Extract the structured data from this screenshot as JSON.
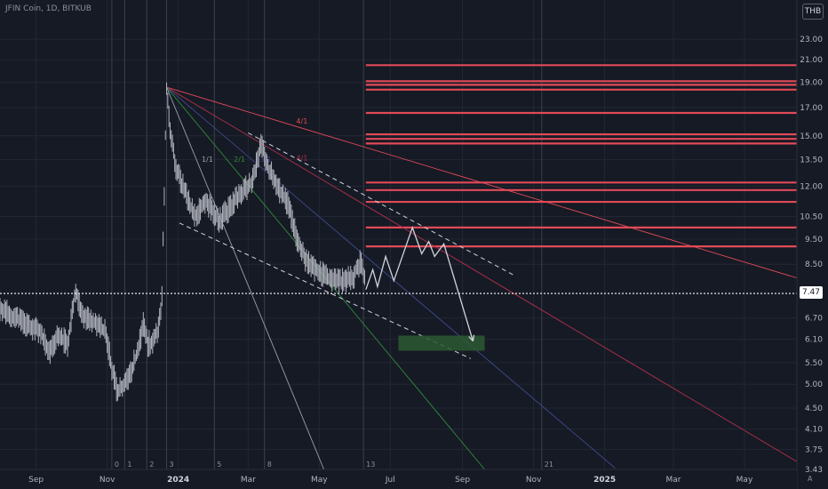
{
  "header": {
    "symbol_line": "JFIN Coin, 1D, BITKUB",
    "currency": "THB"
  },
  "price_axis": {
    "labels": [
      "23.00",
      "21.00",
      "19.00",
      "17.00",
      "15.00",
      "13.50",
      "12.00",
      "10.50",
      "9.50",
      "8.50",
      "6.70",
      "6.10",
      "5.50",
      "5.00",
      "4.50",
      "4.10",
      "3.75",
      "3.43"
    ],
    "last_price": "7.47",
    "scale": "log",
    "auto_label": "A"
  },
  "time_axis": {
    "labels": [
      "Sep",
      "Nov",
      "2024",
      "Mar",
      "May",
      "Jul",
      "Sep",
      "Nov",
      "2025",
      "Mar",
      "May"
    ],
    "bold": [
      "2024",
      "2025"
    ]
  },
  "chart_data": {
    "type": "line",
    "symbol": "JFIN Coin",
    "interval": "1D",
    "exchange": "BITKUB",
    "currency": "THB",
    "x_axis": "date",
    "xlim": [
      "2023-08-01",
      "2025-06-15"
    ],
    "ylim": [
      3.43,
      24.5
    ],
    "y_scale": "log",
    "grid": true,
    "series": [
      {
        "style": "candles",
        "color": "#b2b5be",
        "points": [
          {
            "x": "2023-08-01",
            "y": 7.0
          },
          {
            "x": "2023-08-10",
            "y": 6.8
          },
          {
            "x": "2023-08-20",
            "y": 6.6
          },
          {
            "x": "2023-08-30",
            "y": 6.4
          },
          {
            "x": "2023-09-05",
            "y": 6.3
          },
          {
            "x": "2023-09-12",
            "y": 5.7
          },
          {
            "x": "2023-09-20",
            "y": 6.2
          },
          {
            "x": "2023-09-28",
            "y": 6.0
          },
          {
            "x": "2023-10-02",
            "y": 6.9
          },
          {
            "x": "2023-10-05",
            "y": 7.6
          },
          {
            "x": "2023-10-10",
            "y": 6.8
          },
          {
            "x": "2023-10-20",
            "y": 6.6
          },
          {
            "x": "2023-10-30",
            "y": 6.3
          },
          {
            "x": "2023-11-05",
            "y": 5.4
          },
          {
            "x": "2023-11-10",
            "y": 4.8
          },
          {
            "x": "2023-11-15",
            "y": 5.0
          },
          {
            "x": "2023-11-22",
            "y": 5.3
          },
          {
            "x": "2023-11-28",
            "y": 5.9
          },
          {
            "x": "2023-12-02",
            "y": 6.5
          },
          {
            "x": "2023-12-06",
            "y": 6.0
          },
          {
            "x": "2023-12-10",
            "y": 6.0
          },
          {
            "x": "2023-12-15",
            "y": 6.4
          },
          {
            "x": "2023-12-18",
            "y": 7.3
          },
          {
            "x": "2023-12-20",
            "y": 11.5
          },
          {
            "x": "2023-12-22",
            "y": 18.6
          },
          {
            "x": "2023-12-25",
            "y": 15.5
          },
          {
            "x": "2023-12-30",
            "y": 13.0
          },
          {
            "x": "2024-01-08",
            "y": 11.5
          },
          {
            "x": "2024-01-15",
            "y": 10.5
          },
          {
            "x": "2024-01-25",
            "y": 11.2
          },
          {
            "x": "2024-02-05",
            "y": 10.3
          },
          {
            "x": "2024-02-15",
            "y": 11.0
          },
          {
            "x": "2024-02-25",
            "y": 11.7
          },
          {
            "x": "2024-03-05",
            "y": 12.3
          },
          {
            "x": "2024-03-12",
            "y": 14.5
          },
          {
            "x": "2024-03-18",
            "y": 13.0
          },
          {
            "x": "2024-03-28",
            "y": 11.8
          },
          {
            "x": "2024-04-05",
            "y": 11.0
          },
          {
            "x": "2024-04-12",
            "y": 9.5
          },
          {
            "x": "2024-04-20",
            "y": 8.6
          },
          {
            "x": "2024-04-28",
            "y": 8.3
          },
          {
            "x": "2024-05-08",
            "y": 8.0
          },
          {
            "x": "2024-05-20",
            "y": 7.9
          },
          {
            "x": "2024-05-30",
            "y": 8.0
          },
          {
            "x": "2024-06-05",
            "y": 8.6
          },
          {
            "x": "2024-06-10",
            "y": 7.8
          }
        ]
      },
      {
        "style": "projection",
        "color": "#d1d4dc",
        "points": [
          {
            "x": "2024-06-10",
            "y": 7.6
          },
          {
            "x": "2024-06-16",
            "y": 8.3
          },
          {
            "x": "2024-06-20",
            "y": 7.7
          },
          {
            "x": "2024-06-27",
            "y": 8.8
          },
          {
            "x": "2024-07-04",
            "y": 7.9
          },
          {
            "x": "2024-07-20",
            "y": 10.0
          },
          {
            "x": "2024-07-28",
            "y": 8.9
          },
          {
            "x": "2024-08-03",
            "y": 9.4
          },
          {
            "x": "2024-08-08",
            "y": 8.8
          },
          {
            "x": "2024-08-16",
            "y": 9.3
          },
          {
            "x": "2024-09-10",
            "y": 6.05
          }
        ]
      }
    ],
    "horizontal_levels": {
      "color": "#e04a57",
      "start": "2024-06-10",
      "values": [
        20.5,
        19.1,
        18.8,
        18.4,
        16.6,
        15.1,
        14.8,
        14.5,
        12.2,
        11.8,
        11.2,
        10.0,
        9.2
      ]
    },
    "target_zone": {
      "color": "#2b5a33",
      "x": [
        "2024-07-08",
        "2024-09-20"
      ],
      "y": [
        5.8,
        6.2
      ]
    },
    "gann_fan": {
      "origin": {
        "x": "2023-12-22",
        "y": 18.6
      },
      "rays": [
        {
          "label": "4/1",
          "color": "#e04a57",
          "end": {
            "x": "2025-06-15",
            "y": 8.0
          }
        },
        {
          "label": "4/1",
          "color": "#b0304a",
          "end": {
            "x": "2025-06-15",
            "y": 3.55
          }
        },
        {
          "label": "3/1",
          "color": "#3d4a8c",
          "end": {
            "x": "2025-01-10",
            "y": 3.45
          }
        },
        {
          "label": "2/1",
          "color": "#2f8a3b",
          "end": {
            "x": "2024-09-20",
            "y": 3.43
          }
        },
        {
          "label": "1/1",
          "color": "#9aa0ab",
          "end": {
            "x": "2024-05-05",
            "y": 3.43
          }
        }
      ]
    },
    "channel": {
      "color": "#d1d4dc",
      "upper": [
        {
          "x": "2024-03-01",
          "y": 15.2
        },
        {
          "x": "2024-10-15",
          "y": 8.1
        }
      ],
      "lower": [
        {
          "x": "2024-01-02",
          "y": 10.2
        },
        {
          "x": "2024-09-08",
          "y": 5.6
        }
      ]
    },
    "vertical_markers": [
      {
        "x": "2023-11-05",
        "label": "0"
      },
      {
        "x": "2023-11-16",
        "label": "1"
      },
      {
        "x": "2023-12-05",
        "label": "2"
      },
      {
        "x": "2023-12-22",
        "label": "3"
      },
      {
        "x": "2024-02-01",
        "label": "5"
      },
      {
        "x": "2024-03-15",
        "label": "8"
      },
      {
        "x": "2024-06-08",
        "label": "13"
      },
      {
        "x": "2024-11-08",
        "label": "21"
      }
    ]
  }
}
